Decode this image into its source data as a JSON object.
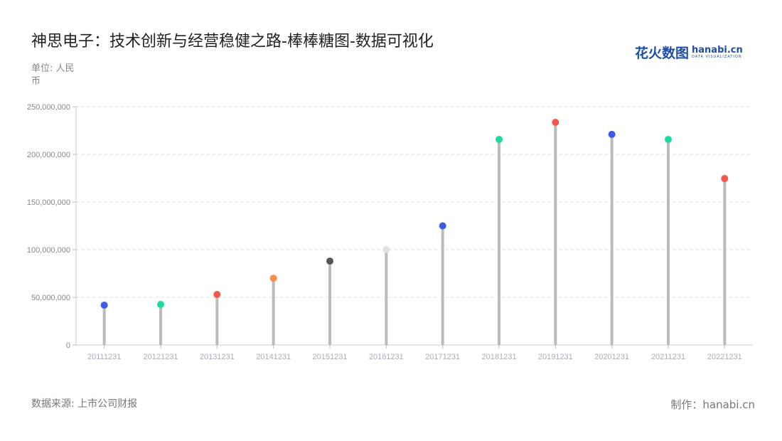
{
  "header": {
    "title": "神思电子：技术创新与经营稳健之路-棒棒糖图-数据可视化",
    "unit": "单位: 人民币"
  },
  "logo": {
    "cn": "花火数图",
    "en": "hanabi.cn",
    "tagline": "DATA VISUALIZATION"
  },
  "footer": {
    "source": "数据来源: 上市公司财报",
    "maker": "制作：hanabi.cn"
  },
  "chart_data": {
    "type": "lollipop",
    "categories": [
      "20111231",
      "20121231",
      "20131231",
      "20141231",
      "20151231",
      "20161231",
      "20171231",
      "20181231",
      "20191231",
      "20201231",
      "20211231",
      "20221231"
    ],
    "values": [
      41800000,
      42500000,
      53000000,
      70000000,
      88000000,
      100000000,
      125000000,
      215700000,
      233600000,
      221000000,
      215700000,
      174600000
    ],
    "colors": [
      "#3b5bea",
      "#1ddc9a",
      "#f5574b",
      "#ff8c4b",
      "#55555f",
      "#dde0e8",
      "#3b5bea",
      "#1ddc9a",
      "#f5574b",
      "#3b5bea",
      "#1ddc9a",
      "#f5574b"
    ],
    "ylim": [
      0,
      250000000
    ],
    "yticks": [
      "0",
      "50,000,000",
      "100,000,000",
      "150,000,000",
      "200,000,000",
      "250,000,000"
    ],
    "grid": true
  }
}
